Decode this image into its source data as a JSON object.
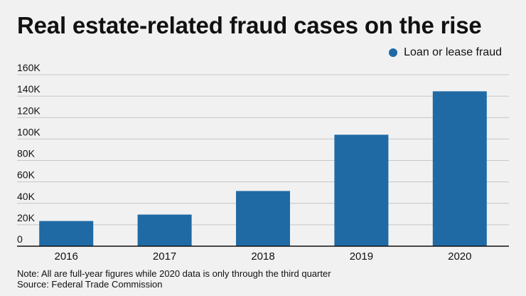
{
  "chart_data": {
    "type": "bar",
    "title": "Real estate-related fraud cases on the rise",
    "xlabel": "",
    "ylabel": "",
    "categories": [
      "2016",
      "2017",
      "2018",
      "2019",
      "2020"
    ],
    "series": [
      {
        "name": "Loan or lease fraud",
        "values": [
          23500,
          29500,
          51500,
          104000,
          144500
        ]
      }
    ],
    "ylim": [
      0,
      160000
    ],
    "yticks": [
      0,
      20000,
      40000,
      60000,
      80000,
      100000,
      120000,
      140000,
      160000
    ],
    "ytick_labels": [
      "0",
      "20K",
      "40K",
      "60K",
      "80K",
      "100K",
      "120K",
      "140K",
      "160K"
    ],
    "grid": true,
    "legend_position": "top-right",
    "colors": {
      "bar": "#1f6aa5",
      "grid": "#c6c6c6",
      "axis": "#111111",
      "background": "#f1f1f1"
    }
  },
  "notes": {
    "note": "Note: All are full-year figures while 2020 data is only through the third quarter",
    "source": "Source: Federal Trade Commission"
  }
}
